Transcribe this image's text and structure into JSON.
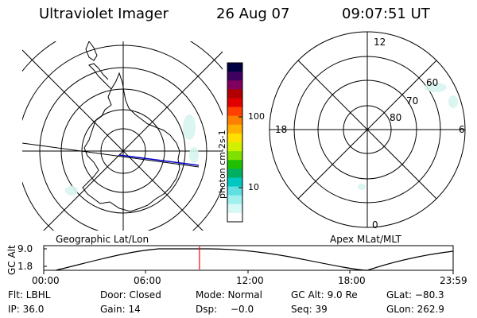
{
  "header": {
    "title": "Ultraviolet Imager",
    "date": "26 Aug 07",
    "time": "09:07:51 UT"
  },
  "left_panel": {
    "label": "Geographic Lat/Lon"
  },
  "right_panel": {
    "label": "Apex MLat/MLT",
    "mlt_labels": {
      "top": "12",
      "left": "18",
      "right": "6",
      "bottom": "0"
    },
    "lat_labels": [
      "60",
      "70",
      "80"
    ]
  },
  "colorbar": {
    "unit_label": "photon cm-2s-1",
    "ticks": [
      "100",
      "10"
    ],
    "colors": [
      "#000040",
      "#400060",
      "#800060",
      "#b00000",
      "#e00000",
      "#ff4000",
      "#ff8000",
      "#ffb000",
      "#ffe000",
      "#d0f000",
      "#80e000",
      "#20c000",
      "#00b060",
      "#00c8c0",
      "#60e0e0",
      "#a0f0f0",
      "#d8f8f8",
      "#ffffff"
    ]
  },
  "altitude_plot": {
    "ylabel": "GC Alt",
    "yticks": [
      "9.0",
      "1.8"
    ],
    "xticks": [
      "00:00",
      "06:00",
      "12:00",
      "18:00",
      "23:59"
    ],
    "marker_hour": 9.13,
    "marker_color": "#ff0000"
  },
  "info": {
    "row1": [
      "Flt: LBHL",
      "Door: Closed",
      "Mode: Normal",
      "GC Alt: 9.0 Re",
      "GLat: −80.3"
    ],
    "row2": [
      "IP: 36.0",
      "Gain: 14",
      "Dsp:",
      "−0.0",
      "Seq: 39",
      "GLon: 262.9"
    ]
  }
}
